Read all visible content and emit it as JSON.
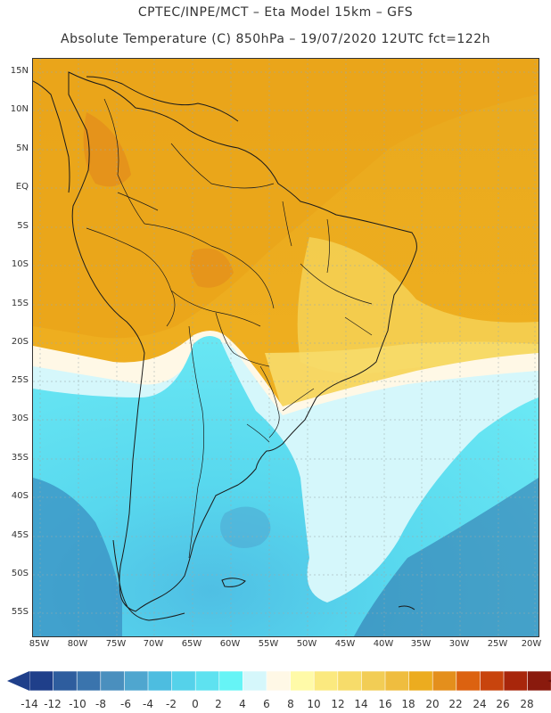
{
  "header": {
    "line1": "CPTEC/INPE/MCT –  Eta Model 15km – GFS",
    "line2": "Absolute Temperature (C) 850hPa – 19/07/2020 12UTC fct=122h"
  },
  "map": {
    "lat_labels": [
      "15N",
      "10N",
      "5N",
      "EQ",
      "5S",
      "10S",
      "15S",
      "20S",
      "25S",
      "30S",
      "35S",
      "40S",
      "45S",
      "50S",
      "55S"
    ],
    "lon_labels": [
      "85W",
      "80W",
      "75W",
      "70W",
      "65W",
      "60W",
      "55W",
      "50W",
      "45W",
      "40W",
      "35W",
      "30W",
      "25W",
      "20W"
    ]
  },
  "colorbar": {
    "labels": [
      "-14",
      "-12",
      "-10",
      "-8",
      "-6",
      "-4",
      "-2",
      "0",
      "2",
      "4",
      "6",
      "8",
      "10",
      "12",
      "14",
      "16",
      "18",
      "20",
      "22",
      "24",
      "26",
      "28"
    ],
    "colors": [
      "#1f3f8a",
      "#2e5d9e",
      "#3a74ad",
      "#4a8fbe",
      "#4fa6cf",
      "#4dbde0",
      "#55d2ea",
      "#5ee2f0",
      "#66f4f6",
      "#d5f7fb",
      "#fff8e6",
      "#fffaa8",
      "#fbe97f",
      "#f7dc6a",
      "#f2cd55",
      "#efbd3f",
      "#ecac1f",
      "#e48f1c",
      "#dc6210",
      "#c8440d",
      "#a8260b",
      "#8a1a0d",
      "#6b0f0d"
    ]
  }
}
